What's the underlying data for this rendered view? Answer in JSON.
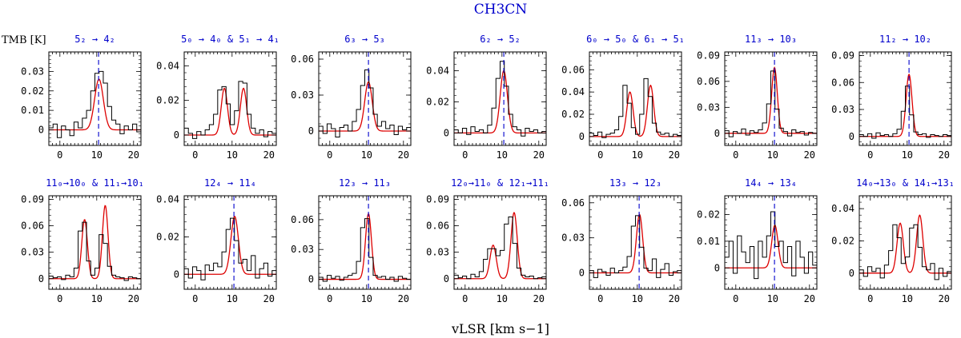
{
  "figure": {
    "title": "CH3CN",
    "ylabel": "TMB [K]",
    "xlabel": "vLSR [km s−1]",
    "colors": {
      "title": "#0000cc",
      "panel_title": "#0000cc",
      "observed": "#000000",
      "fit": "#dd0000",
      "vline": "#0000cc",
      "axes": "#000000"
    }
  },
  "chart_data": [
    {
      "type": "line",
      "title": "5₂ → 4₂",
      "xlim": [
        -3,
        22
      ],
      "ylim": [
        -0.008,
        0.04
      ],
      "xticks": [
        0,
        10,
        20
      ],
      "yticks": [
        0,
        0.01,
        0.02,
        0.03
      ],
      "ytick_labels": [
        "0",
        "0.01",
        "0.02",
        "0.03"
      ],
      "vline": 10.5,
      "series": [
        {
          "role": "observed",
          "values": [
            0.001,
            0.003,
            -0.004,
            0.002,
            0.0,
            -0.003,
            0.004,
            0.001,
            0.006,
            0.01,
            0.02,
            0.029,
            0.03,
            0.024,
            0.012,
            0.005,
            0.003,
            -0.002,
            0.002,
            0.0,
            0.003,
            -0.001
          ]
        },
        {
          "role": "fit",
          "components": [
            {
              "center": 10.6,
              "amplitude": 0.026,
              "fwhm": 2.8
            }
          ]
        }
      ]
    },
    {
      "type": "line",
      "title": "5₀ → 4₀ & 5₁ → 4₁",
      "xlim": [
        -3,
        22
      ],
      "ylim": [
        -0.006,
        0.048
      ],
      "xticks": [
        0,
        10,
        20
      ],
      "yticks": [
        0,
        0.02,
        0.04
      ],
      "ytick_labels": [
        "0",
        "0.02",
        "0.04"
      ],
      "series": [
        {
          "role": "observed",
          "values": [
            0.004,
            0.001,
            -0.002,
            0.002,
            0.0,
            0.003,
            0.006,
            0.012,
            0.026,
            0.028,
            0.018,
            0.006,
            0.014,
            0.031,
            0.03,
            0.012,
            0.004,
            0.001,
            0.003,
            -0.001,
            0.002,
            0.001
          ]
        },
        {
          "role": "fit",
          "components": [
            {
              "center": 7.9,
              "amplitude": 0.027,
              "fwhm": 2.0
            },
            {
              "center": 13.1,
              "amplitude": 0.027,
              "fwhm": 2.0
            }
          ]
        }
      ]
    },
    {
      "type": "line",
      "title": "6₃ → 5₃",
      "xlim": [
        -3,
        22
      ],
      "ylim": [
        -0.012,
        0.066
      ],
      "xticks": [
        0,
        10,
        20
      ],
      "yticks": [
        0,
        0.03,
        0.06
      ],
      "ytick_labels": [
        "0",
        "0.03",
        "0.06"
      ],
      "vline": 10.5,
      "series": [
        {
          "role": "observed",
          "values": [
            0.004,
            -0.002,
            0.006,
            0.002,
            -0.005,
            0.003,
            0.005,
            0.0,
            0.008,
            0.018,
            0.038,
            0.051,
            0.036,
            0.014,
            0.004,
            0.008,
            0.002,
            0.005,
            -0.003,
            0.004,
            0.001,
            0.003
          ]
        },
        {
          "role": "fit",
          "components": [
            {
              "center": 10.5,
              "amplitude": 0.041,
              "fwhm": 2.4
            }
          ]
        }
      ]
    },
    {
      "type": "line",
      "title": "6₂ → 5₂",
      "xlim": [
        -3,
        22
      ],
      "ylim": [
        -0.008,
        0.052
      ],
      "xticks": [
        0,
        10,
        20
      ],
      "yticks": [
        0,
        0.02,
        0.04
      ],
      "ytick_labels": [
        "0",
        "0.02",
        "0.04"
      ],
      "vline": 10.5,
      "series": [
        {
          "role": "observed",
          "values": [
            0.002,
            0.0,
            0.003,
            -0.001,
            0.004,
            0.001,
            0.002,
            0.0,
            0.005,
            0.016,
            0.035,
            0.046,
            0.03,
            0.012,
            0.004,
            0.002,
            -0.002,
            0.003,
            0.001,
            0.002,
            0.0,
            0.001
          ]
        },
        {
          "role": "fit",
          "components": [
            {
              "center": 10.5,
              "amplitude": 0.04,
              "fwhm": 2.3
            }
          ]
        }
      ]
    },
    {
      "type": "line",
      "title": "6₀ → 5₀ & 6₁ → 5₁",
      "xlim": [
        -3,
        22
      ],
      "ylim": [
        -0.008,
        0.076
      ],
      "xticks": [
        0,
        10,
        20
      ],
      "yticks": [
        0,
        0.02,
        0.04,
        0.06
      ],
      "ytick_labels": [
        "0",
        "0.02",
        "0.04",
        "0.06"
      ],
      "series": [
        {
          "role": "observed",
          "values": [
            0.003,
            0.001,
            0.004,
            -0.001,
            0.002,
            0.003,
            0.006,
            0.018,
            0.046,
            0.03,
            0.008,
            0.002,
            0.02,
            0.052,
            0.036,
            0.012,
            0.004,
            0.002,
            0.003,
            0.0,
            0.002,
            0.001
          ]
        },
        {
          "role": "fit",
          "components": [
            {
              "center": 8.0,
              "amplitude": 0.04,
              "fwhm": 2.0
            },
            {
              "center": 13.6,
              "amplitude": 0.046,
              "fwhm": 2.0
            }
          ]
        }
      ]
    },
    {
      "type": "line",
      "title": "11₃ → 10₃",
      "xlim": [
        -3,
        22
      ],
      "ylim": [
        -0.014,
        0.094
      ],
      "xticks": [
        0,
        10,
        20
      ],
      "yticks": [
        0,
        0.03,
        0.06,
        0.09
      ],
      "ytick_labels": [
        "0",
        "0.03",
        "0.06",
        "0.09"
      ],
      "vline": 10.5,
      "series": [
        {
          "role": "observed",
          "values": [
            0.003,
            -0.004,
            0.002,
            0.0,
            0.005,
            -0.002,
            0.003,
            0.001,
            0.004,
            0.012,
            0.034,
            0.072,
            0.028,
            0.006,
            0.002,
            -0.003,
            0.004,
            0.001,
            0.002,
            -0.002,
            0.001,
            0.0
          ]
        },
        {
          "role": "fit",
          "components": [
            {
              "center": 10.5,
              "amplitude": 0.076,
              "fwhm": 1.8
            }
          ]
        }
      ]
    },
    {
      "type": "line",
      "title": "11₂ → 10₂",
      "xlim": [
        -3,
        22
      ],
      "ylim": [
        -0.01,
        0.094
      ],
      "xticks": [
        0,
        10,
        20
      ],
      "yticks": [
        0,
        0.03,
        0.06,
        0.09
      ],
      "ytick_labels": [
        "0",
        "0.03",
        "0.06",
        "0.09"
      ],
      "vline": 10.5,
      "series": [
        {
          "role": "observed",
          "values": [
            0.002,
            0.0,
            0.003,
            -0.002,
            0.004,
            0.001,
            0.002,
            0.0,
            0.003,
            0.008,
            0.028,
            0.056,
            0.024,
            0.005,
            0.002,
            0.003,
            -0.001,
            0.002,
            0.001,
            0.0,
            0.002,
            0.001
          ]
        },
        {
          "role": "fit",
          "components": [
            {
              "center": 10.5,
              "amplitude": 0.069,
              "fwhm": 1.9
            }
          ]
        }
      ]
    },
    {
      "type": "line",
      "title": "11₀→10₀ & 11₁→10₁",
      "xlim": [
        -3,
        22
      ],
      "ylim": [
        -0.012,
        0.094
      ],
      "xticks": [
        0,
        10,
        20
      ],
      "yticks": [
        0,
        0.03,
        0.06,
        0.09
      ],
      "ytick_labels": [
        "0",
        "0.03",
        "0.06",
        "0.09"
      ],
      "series": [
        {
          "role": "observed",
          "values": [
            0.003,
            0.001,
            0.002,
            -0.001,
            0.004,
            0.002,
            0.012,
            0.054,
            0.064,
            0.02,
            0.004,
            0.012,
            0.05,
            0.04,
            0.014,
            0.004,
            0.002,
            0.001,
            -0.002,
            0.002,
            0.001,
            0.0
          ]
        },
        {
          "role": "fit",
          "components": [
            {
              "center": 6.7,
              "amplitude": 0.067,
              "fwhm": 1.8
            },
            {
              "center": 12.3,
              "amplitude": 0.083,
              "fwhm": 1.8
            }
          ]
        }
      ]
    },
    {
      "type": "line",
      "title": "12₄ → 11₄",
      "xlim": [
        -3,
        22
      ],
      "ylim": [
        -0.008,
        0.042
      ],
      "xticks": [
        0,
        10,
        20
      ],
      "yticks": [
        0,
        0.02,
        0.04
      ],
      "ytick_labels": [
        "0",
        "0.02",
        "0.04"
      ],
      "vline": 10.5,
      "series": [
        {
          "role": "observed",
          "values": [
            0.003,
            -0.002,
            0.004,
            0.002,
            -0.003,
            0.005,
            0.002,
            0.006,
            0.004,
            0.012,
            0.024,
            0.03,
            0.018,
            0.006,
            0.008,
            0.002,
            0.01,
            -0.002,
            0.003,
            0.006,
            -0.001,
            0.002
          ]
        },
        {
          "role": "fit",
          "components": [
            {
              "center": 10.7,
              "amplitude": 0.031,
              "fwhm": 2.4
            }
          ]
        }
      ]
    },
    {
      "type": "line",
      "title": "12₃ → 11₃",
      "xlim": [
        -3,
        22
      ],
      "ylim": [
        -0.01,
        0.084
      ],
      "xticks": [
        0,
        10,
        20
      ],
      "yticks": [
        0,
        0.03,
        0.06
      ],
      "ytick_labels": [
        "0",
        "0.03",
        "0.06"
      ],
      "vline": 10.5,
      "series": [
        {
          "role": "observed",
          "values": [
            0.002,
            -0.002,
            0.004,
            0.001,
            0.003,
            -0.001,
            0.002,
            0.004,
            0.006,
            0.018,
            0.052,
            0.061,
            0.022,
            0.004,
            0.002,
            0.003,
            0.0,
            0.002,
            -0.002,
            0.003,
            0.001,
            0.0
          ]
        },
        {
          "role": "fit",
          "components": [
            {
              "center": 10.5,
              "amplitude": 0.066,
              "fwhm": 1.9
            }
          ]
        }
      ]
    },
    {
      "type": "line",
      "title": "12₀→11₀ & 12₁→11₁",
      "xlim": [
        -3,
        22
      ],
      "ylim": [
        -0.012,
        0.094
      ],
      "xticks": [
        0,
        10,
        20
      ],
      "yticks": [
        0,
        0.03,
        0.06,
        0.09
      ],
      "ytick_labels": [
        "0",
        "0.03",
        "0.06",
        "0.09"
      ],
      "series": [
        {
          "role": "observed",
          "values": [
            0.004,
            0.001,
            0.003,
            0.0,
            0.005,
            0.002,
            0.008,
            0.022,
            0.034,
            0.034,
            0.026,
            0.032,
            0.062,
            0.07,
            0.04,
            0.012,
            0.004,
            0.002,
            0.003,
            0.0,
            0.001,
            0.002
          ]
        },
        {
          "role": "fit",
          "components": [
            {
              "center": 7.6,
              "amplitude": 0.038,
              "fwhm": 2.0
            },
            {
              "center": 13.3,
              "amplitude": 0.075,
              "fwhm": 2.0
            }
          ]
        }
      ]
    },
    {
      "type": "line",
      "title": "13₃ → 12₃",
      "xlim": [
        -3,
        22
      ],
      "ylim": [
        -0.014,
        0.066
      ],
      "xticks": [
        0,
        10,
        20
      ],
      "yticks": [
        0,
        0.03,
        0.06
      ],
      "ytick_labels": [
        "0",
        "0.03",
        "0.06"
      ],
      "vline": 10.5,
      "series": [
        {
          "role": "observed",
          "values": [
            0.002,
            -0.004,
            0.003,
            0.001,
            -0.002,
            0.004,
            0.0,
            0.002,
            0.005,
            0.014,
            0.04,
            0.049,
            0.022,
            0.004,
            0.002,
            0.012,
            -0.004,
            0.003,
            0.008,
            -0.002,
            0.001,
            0.002
          ]
        },
        {
          "role": "fit",
          "components": [
            {
              "center": 10.6,
              "amplitude": 0.05,
              "fwhm": 2.0
            }
          ]
        }
      ]
    },
    {
      "type": "line",
      "title": "14₄ → 13₄",
      "xlim": [
        -3,
        22
      ],
      "ylim": [
        -0.008,
        0.027
      ],
      "xticks": [
        0,
        10,
        20
      ],
      "yticks": [
        0,
        0.01,
        0.02
      ],
      "ytick_labels": [
        "0",
        "0.01",
        "0.02"
      ],
      "vline": 10.5,
      "series": [
        {
          "role": "observed",
          "values": [
            0.004,
            0.01,
            -0.002,
            0.012,
            0.006,
            0.002,
            0.008,
            -0.004,
            0.01,
            0.004,
            0.012,
            0.021,
            0.008,
            0.01,
            0.002,
            0.008,
            -0.003,
            0.01,
            0.004,
            -0.002,
            0.006,
            0.001
          ]
        },
        {
          "role": "fit",
          "components": [
            {
              "center": 10.6,
              "amplitude": 0.016,
              "fwhm": 2.0
            }
          ]
        }
      ]
    },
    {
      "type": "line",
      "title": "14₀→13₀ & 14₁→13₁",
      "xlim": [
        -3,
        22
      ],
      "ylim": [
        -0.01,
        0.048
      ],
      "xticks": [
        0,
        10,
        20
      ],
      "yticks": [
        0,
        0.02,
        0.04
      ],
      "ytick_labels": [
        "0",
        "0.02",
        "0.04"
      ],
      "series": [
        {
          "role": "observed",
          "values": [
            0.002,
            -0.002,
            0.004,
            0.001,
            0.003,
            -0.003,
            0.005,
            0.014,
            0.03,
            0.022,
            0.006,
            0.01,
            0.028,
            0.03,
            0.016,
            0.004,
            0.002,
            0.006,
            -0.004,
            0.003,
            -0.002,
            0.001
          ]
        },
        {
          "role": "fit",
          "components": [
            {
              "center": 8.1,
              "amplitude": 0.031,
              "fwhm": 2.0
            },
            {
              "center": 13.4,
              "amplitude": 0.036,
              "fwhm": 2.0
            }
          ]
        }
      ]
    }
  ]
}
